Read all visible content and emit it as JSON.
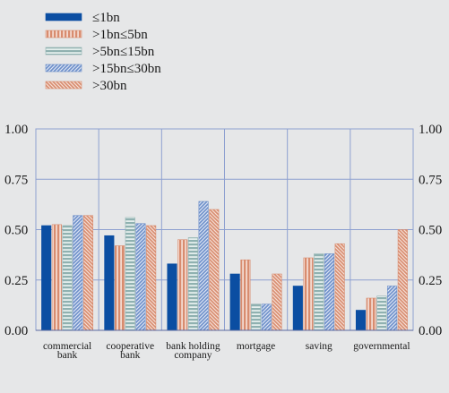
{
  "chart_data": {
    "type": "bar",
    "categories": [
      [
        "commercial",
        "bank"
      ],
      [
        "cooperative",
        "bank"
      ],
      [
        "bank holding",
        "company"
      ],
      [
        "mortgage"
      ],
      [
        "saving"
      ],
      [
        "governmental"
      ]
    ],
    "series": [
      {
        "name": "≤1bn",
        "pattern": "solid",
        "values": [
          0.52,
          0.47,
          0.33,
          0.28,
          0.22,
          0.1
        ]
      },
      {
        "name": ">1bn≤5bn",
        "pattern": "vstripe",
        "values": [
          0.525,
          0.42,
          0.45,
          0.35,
          0.36,
          0.16
        ]
      },
      {
        "name": ">5bn≤15bn",
        "pattern": "hstripe",
        "values": [
          0.52,
          0.56,
          0.46,
          0.13,
          0.38,
          0.17
        ]
      },
      {
        "name": ">15bn≤30bn",
        "pattern": "diag",
        "values": [
          0.57,
          0.53,
          0.64,
          0.13,
          0.38,
          0.22
        ]
      },
      {
        "name": ">30bn",
        "pattern": "antidiag",
        "values": [
          0.57,
          0.52,
          0.6,
          0.28,
          0.43,
          0.5
        ]
      }
    ],
    "yticks": [
      "0.00",
      "0.25",
      "0.50",
      "0.75",
      "1.00"
    ],
    "ylim": [
      0,
      1
    ],
    "grid": true,
    "legend_position": "top-left",
    "colors": {
      "navy": "#0b4ea2",
      "salmon": "#d88c6f",
      "teal": "#8fb1b0",
      "blue": "#6d8fc9",
      "grid": "#8ea0d0",
      "background": "#e6e7e8"
    }
  }
}
